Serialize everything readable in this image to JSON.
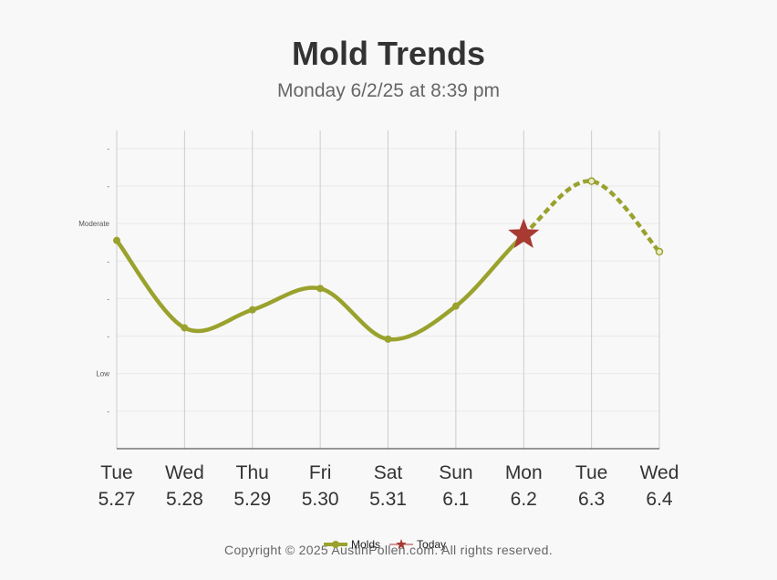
{
  "header": {
    "title": "Mold Trends",
    "subtitle": "Monday 6/2/25 at 8:39 pm"
  },
  "footer": {
    "copyright": "Copyright © 2025 AustinPollen.com.  All rights reserved."
  },
  "legend": {
    "molds_label": "Molds",
    "today_label": "Today"
  },
  "colors": {
    "series": "#9aa22e",
    "today_marker": "#a83a32",
    "grid": "#cccccc",
    "text": "#333333"
  },
  "chart_data": {
    "type": "line",
    "title": "Mold Trends",
    "subtitle": "Monday 6/2/25 at 8:39 pm",
    "x_days": [
      "Tue",
      "Wed",
      "Thu",
      "Fri",
      "Sat",
      "Sun",
      "Mon",
      "Tue",
      "Wed"
    ],
    "x_dates": [
      "5.27",
      "5.28",
      "5.29",
      "5.30",
      "5.31",
      "6.1",
      "6.2",
      "6.3",
      "6.4"
    ],
    "y_tick_labels": [
      "-",
      "Low",
      "-",
      "-",
      "-",
      "Moderate",
      "-",
      "-"
    ],
    "ylim": [
      0,
      8.75
    ],
    "series": [
      {
        "name": "Molds",
        "values": [
          5.55,
          3.22,
          3.7,
          4.27,
          2.92,
          3.8,
          5.7,
          7.13,
          5.25
        ],
        "forecast_from_index": 6
      }
    ],
    "today_index": 6,
    "grid": true,
    "legend_position": "bottom-center"
  }
}
